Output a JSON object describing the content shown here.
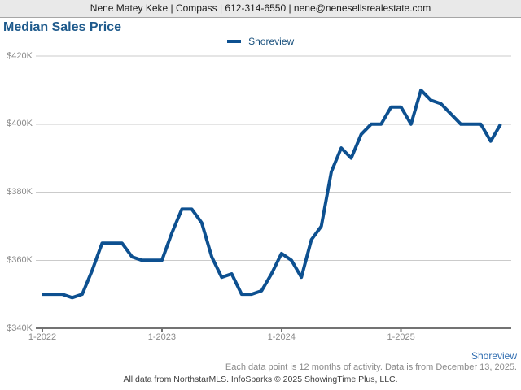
{
  "header": {
    "contact_line": "Nene Matey Keke | Compass | 612-314-6550 | nene@nenesellsrealestate.com"
  },
  "title": "Median Sales Price",
  "legend": {
    "label": "Shoreview",
    "color": "#0d5090"
  },
  "colors": {
    "line": "#0d5090",
    "title": "#1e5a8c",
    "gridline": "#cbcbcb",
    "axis": "#737373",
    "axis_label": "#8a8a8a",
    "series_link": "#2e6cb0",
    "banner_background": "#e9e9e9"
  },
  "chart_data": {
    "type": "line",
    "title": "Median Sales Price",
    "x_unit": "month",
    "categories": [
      "2022-01",
      "2022-02",
      "2022-03",
      "2022-04",
      "2022-05",
      "2022-06",
      "2022-07",
      "2022-08",
      "2022-09",
      "2022-10",
      "2022-11",
      "2022-12",
      "2023-01",
      "2023-02",
      "2023-03",
      "2023-04",
      "2023-05",
      "2023-06",
      "2023-07",
      "2023-08",
      "2023-09",
      "2023-10",
      "2023-11",
      "2023-12",
      "2024-01",
      "2024-02",
      "2024-03",
      "2024-04",
      "2024-05",
      "2024-06",
      "2024-07",
      "2024-08",
      "2024-09",
      "2024-10",
      "2024-11",
      "2024-12",
      "2025-01",
      "2025-02",
      "2025-03",
      "2025-04",
      "2025-05",
      "2025-06",
      "2025-07",
      "2025-08",
      "2025-09",
      "2025-10",
      "2025-11"
    ],
    "series": [
      {
        "name": "Shoreview",
        "color": "#0d5090",
        "values_usd_thousands": [
          350,
          350,
          350,
          349,
          350,
          357,
          365,
          365,
          365,
          361,
          360,
          360,
          360,
          368,
          375,
          375,
          371,
          361,
          355,
          356,
          350,
          350,
          351,
          356,
          362,
          360,
          355,
          366,
          370,
          386,
          393,
          390,
          397,
          400,
          400,
          405,
          405,
          400,
          410,
          407,
          406,
          403,
          400,
          400,
          400,
          395,
          400
        ]
      }
    ],
    "ylim_usd_thousands": [
      340,
      420
    ],
    "y_tick_values_usd_thousands": [
      340,
      360,
      380,
      400,
      420
    ],
    "y_tick_labels": [
      "$340K",
      "$360K",
      "$380K",
      "$400K",
      "$420K"
    ],
    "x_tick_labels": [
      "1-2022",
      "1-2023",
      "1-2024",
      "1-2025"
    ],
    "x_tick_category_indices": [
      0,
      12,
      24,
      36
    ],
    "grid": "horizontal-light",
    "legend_position": "top-center"
  },
  "footer": {
    "series_link": "Shoreview",
    "note": "Each data point is 12 months of activity. Data is from December 13, 2025.",
    "attribution": "All data from NorthstarMLS. InfoSparks © 2025 ShowingTime Plus, LLC."
  }
}
